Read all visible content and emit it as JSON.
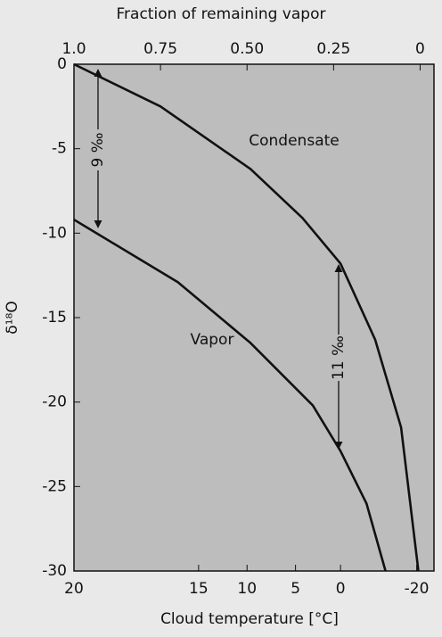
{
  "chart_data": {
    "type": "line",
    "title": "Fraction of remaining vapor",
    "xlabel": "Cloud temperature [°C]",
    "ylabel": "δ¹⁸O",
    "xlim": [
      1.0,
      -0.04
    ],
    "xticks": [
      {
        "value": 1.0,
        "label": "1.0"
      },
      0.75,
      {
        "value": 0.5,
        "label": "0.50"
      },
      0.25,
      0
    ],
    "x2ticks": [
      {
        "value": 1.0,
        "label": "20"
      },
      {
        "value": 0.64,
        "label": "15"
      },
      {
        "value": 0.5,
        "label": "10"
      },
      {
        "value": 0.36,
        "label": "5"
      },
      {
        "value": 0.23,
        "label": "0"
      },
      {
        "value": 0.01,
        "label": "-20"
      }
    ],
    "ylim": [
      0,
      -30
    ],
    "yticks": [
      0,
      -5,
      -10,
      -15,
      -20,
      -25,
      -30
    ],
    "series": [
      {
        "name": "Condensate",
        "color": "#111111",
        "x": [
          1.0,
          0.75,
          0.49,
          0.34,
          0.23,
          0.13,
          0.055,
          0.005
        ],
        "values": [
          0,
          -2.5,
          -6.2,
          -9.1,
          -11.8,
          -16.3,
          -21.5,
          -30
        ]
      },
      {
        "name": "Vapor",
        "color": "#111111",
        "x": [
          1.0,
          0.7,
          0.49,
          0.31,
          0.23,
          0.155,
          0.1
        ],
        "values": [
          -9.2,
          -12.9,
          -16.5,
          -20.2,
          -22.9,
          -26,
          -30
        ]
      }
    ],
    "annotations": [
      "9 ‰",
      "11 ‰"
    ]
  }
}
